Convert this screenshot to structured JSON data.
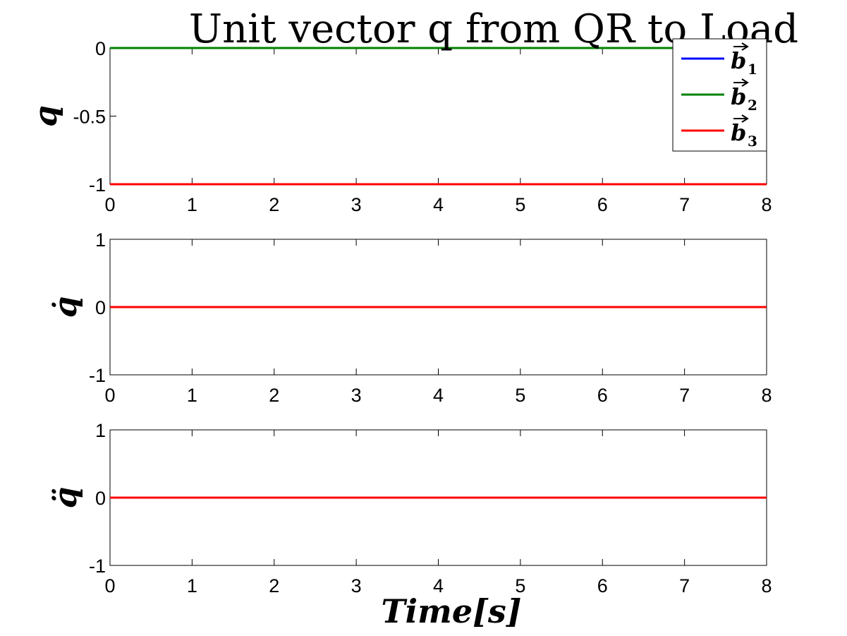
{
  "chart_data": [
    {
      "type": "line",
      "title": "Unit vector q from QR to Load",
      "ylabel": "q",
      "xlabel": "",
      "xlim": [
        0,
        8
      ],
      "ylim": [
        -1,
        0
      ],
      "xticks": [
        0,
        1,
        2,
        3,
        4,
        5,
        6,
        7,
        8
      ],
      "yticks": [
        0,
        -0.5,
        -1
      ],
      "ytick_labels": [
        "0",
        "-0.5",
        "-1"
      ],
      "grid": false,
      "legend": "top-right",
      "series": [
        {
          "name": "b1",
          "legend_symbol": "b",
          "legend_sub": "1",
          "color": "#0000ff",
          "x": [
            0,
            8
          ],
          "y": [
            0,
            0
          ]
        },
        {
          "name": "b2",
          "legend_symbol": "b",
          "legend_sub": "2",
          "color": "#008000",
          "x": [
            0,
            8
          ],
          "y": [
            0,
            0
          ]
        },
        {
          "name": "b3",
          "legend_symbol": "b",
          "legend_sub": "3",
          "color": "#ff0000",
          "x": [
            0,
            8
          ],
          "y": [
            -1,
            -1
          ]
        }
      ]
    },
    {
      "type": "line",
      "title": "",
      "ylabel": "q̇",
      "xlabel": "",
      "xlim": [
        0,
        8
      ],
      "ylim": [
        -1,
        1
      ],
      "xticks": [
        0,
        1,
        2,
        3,
        4,
        5,
        6,
        7,
        8
      ],
      "yticks": [
        1,
        0,
        -1
      ],
      "ytick_labels": [
        "1",
        "0",
        "-1"
      ],
      "grid": false,
      "series": [
        {
          "color": "#0000ff",
          "x": [
            0,
            8
          ],
          "y": [
            0,
            0
          ]
        },
        {
          "color": "#008000",
          "x": [
            0,
            8
          ],
          "y": [
            0,
            0
          ]
        },
        {
          "color": "#ff0000",
          "x": [
            0,
            8
          ],
          "y": [
            0,
            0
          ]
        }
      ]
    },
    {
      "type": "line",
      "title": "",
      "ylabel": "q̈",
      "xlabel": "Time[s]",
      "xlim": [
        0,
        8
      ],
      "ylim": [
        -1,
        1
      ],
      "xticks": [
        0,
        1,
        2,
        3,
        4,
        5,
        6,
        7,
        8
      ],
      "yticks": [
        1,
        0,
        -1
      ],
      "ytick_labels": [
        "1",
        "0",
        "-1"
      ],
      "grid": false,
      "series": [
        {
          "color": "#0000ff",
          "x": [
            0,
            8
          ],
          "y": [
            0,
            0
          ]
        },
        {
          "color": "#008000",
          "x": [
            0,
            8
          ],
          "y": [
            0,
            0
          ]
        },
        {
          "color": "#ff0000",
          "x": [
            0,
            8
          ],
          "y": [
            0,
            0
          ]
        }
      ]
    }
  ]
}
